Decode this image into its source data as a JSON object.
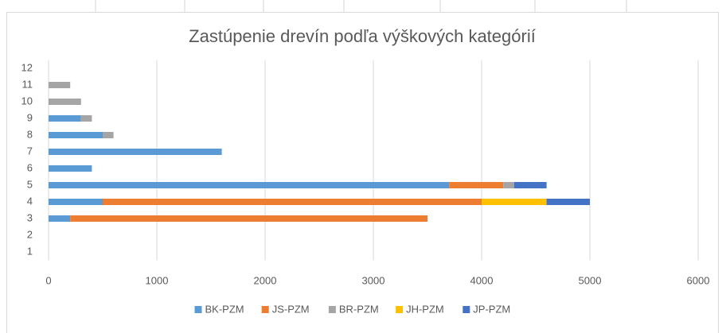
{
  "chart_data": {
    "type": "stacked-barh",
    "title": "Zastúpenie drevín podľa výškových kategórií",
    "categories": [
      "1",
      "2",
      "3",
      "4",
      "5",
      "6",
      "7",
      "8",
      "9",
      "10",
      "11",
      "12"
    ],
    "series": [
      {
        "name": "BK-PZM",
        "color": "#5b9bd5",
        "values": [
          0,
          0,
          200,
          500,
          3700,
          400,
          1600,
          500,
          300,
          0,
          0,
          0
        ]
      },
      {
        "name": "JS-PZM",
        "color": "#ed7d31",
        "values": [
          0,
          0,
          3300,
          3500,
          500,
          0,
          0,
          0,
          0,
          0,
          0,
          0
        ]
      },
      {
        "name": "BR-PZM",
        "color": "#a5a5a5",
        "values": [
          0,
          0,
          0,
          0,
          100,
          0,
          0,
          100,
          100,
          300,
          200,
          0
        ]
      },
      {
        "name": "JH-PZM",
        "color": "#ffc000",
        "values": [
          0,
          0,
          0,
          600,
          0,
          0,
          0,
          0,
          0,
          0,
          0,
          0
        ]
      },
      {
        "name": "JP-PZM",
        "color": "#4472c4",
        "values": [
          0,
          0,
          0,
          400,
          300,
          0,
          0,
          0,
          0,
          0,
          0,
          0
        ]
      }
    ],
    "xlim": [
      0,
      6000
    ],
    "xticks": [
      0,
      1000,
      2000,
      3000,
      4000,
      5000,
      6000
    ],
    "grid": true,
    "legend": "bottom"
  }
}
